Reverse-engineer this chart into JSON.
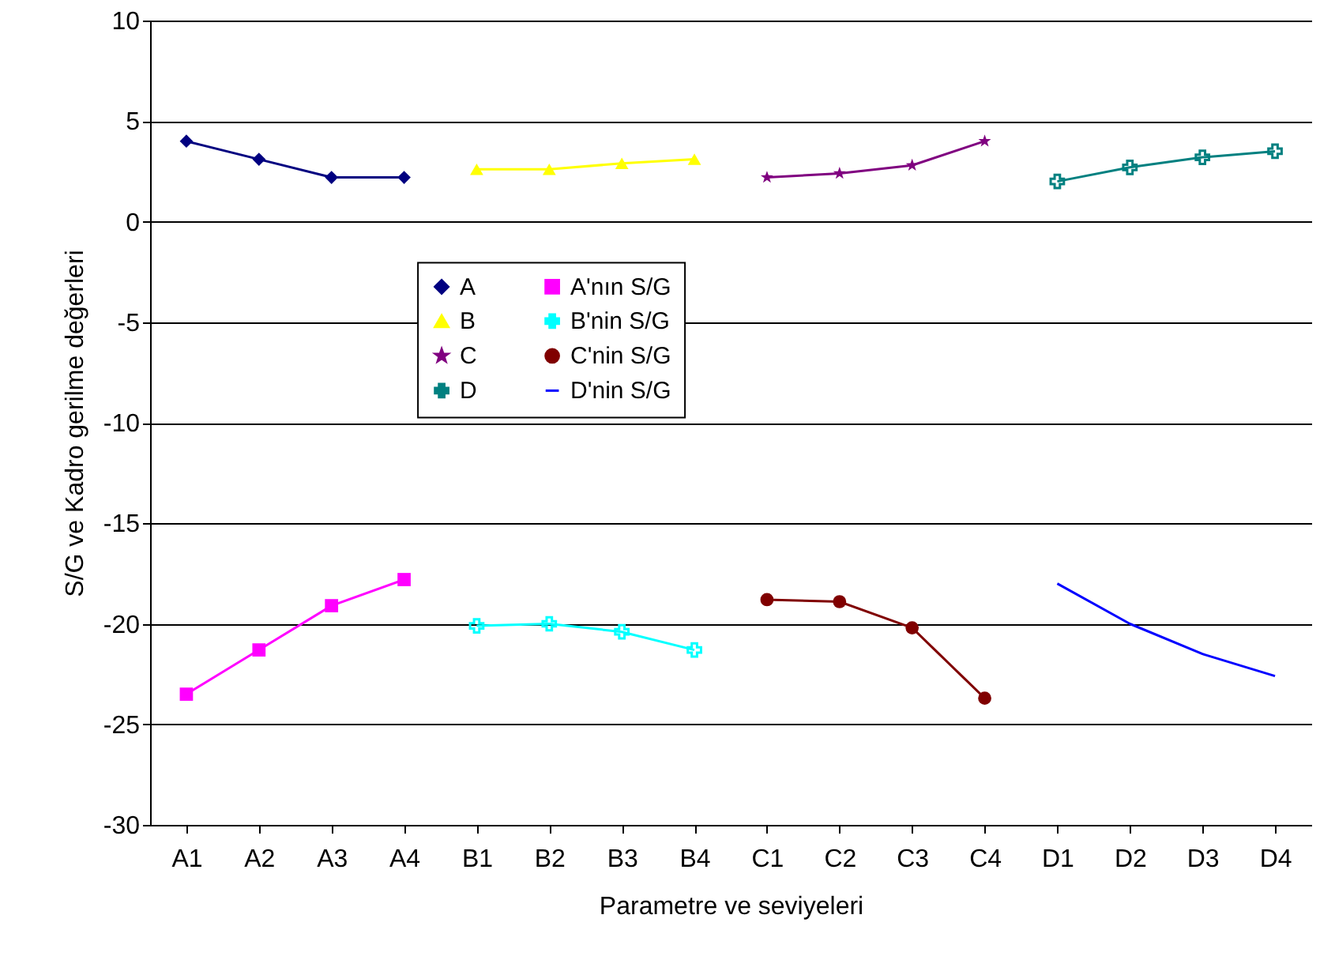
{
  "chart_data": {
    "type": "line",
    "xlabel": "Parametre ve seviyeleri",
    "ylabel": "S/G  ve Kadro gerilme değerleri",
    "categories": [
      "A1",
      "A2",
      "A3",
      "A4",
      "B1",
      "B2",
      "B3",
      "B4",
      "C1",
      "C2",
      "C3",
      "C4",
      "D1",
      "D2",
      "D3",
      "D4"
    ],
    "ylim": [
      -30,
      10
    ],
    "yticks": [
      -30,
      -25,
      -20,
      -15,
      -10,
      -5,
      0,
      5,
      10
    ],
    "grid": "y",
    "legend": "center",
    "series": [
      {
        "name": "A",
        "color": "#000080",
        "marker": "diamond",
        "values": [
          4.0,
          3.1,
          2.2,
          2.2,
          null,
          null,
          null,
          null,
          null,
          null,
          null,
          null,
          null,
          null,
          null,
          null
        ]
      },
      {
        "name": "B",
        "color": "#ffff00",
        "marker": "triangle",
        "values": [
          null,
          null,
          null,
          null,
          2.6,
          2.6,
          2.9,
          3.1,
          null,
          null,
          null,
          null,
          null,
          null,
          null,
          null
        ]
      },
      {
        "name": "C",
        "color": "#800080",
        "marker": "star",
        "values": [
          null,
          null,
          null,
          null,
          null,
          null,
          null,
          null,
          2.2,
          2.4,
          2.8,
          4.0,
          null,
          null,
          null,
          null
        ]
      },
      {
        "name": "D",
        "color": "#008080",
        "marker": "cross",
        "values": [
          null,
          null,
          null,
          null,
          null,
          null,
          null,
          null,
          null,
          null,
          null,
          null,
          2.0,
          2.7,
          3.2,
          3.5
        ]
      },
      {
        "name": "A'nın S/G",
        "color": "#ff00ff",
        "marker": "square",
        "values": [
          -23.5,
          -21.3,
          -19.1,
          -17.8,
          null,
          null,
          null,
          null,
          null,
          null,
          null,
          null,
          null,
          null,
          null,
          null
        ]
      },
      {
        "name": "B'nin S/G",
        "color": "#00ffff",
        "marker": "cross",
        "values": [
          null,
          null,
          null,
          null,
          -20.1,
          -20.0,
          -20.4,
          -21.3,
          null,
          null,
          null,
          null,
          null,
          null,
          null,
          null
        ]
      },
      {
        "name": "C'nin S/G",
        "color": "#800000",
        "marker": "circle",
        "values": [
          null,
          null,
          null,
          null,
          null,
          null,
          null,
          null,
          -18.8,
          -18.9,
          -20.2,
          -23.7,
          null,
          null,
          null,
          null
        ]
      },
      {
        "name": "D'nin S/G",
        "color": "#0000ff",
        "marker": "none",
        "values": [
          null,
          null,
          null,
          null,
          null,
          null,
          null,
          null,
          null,
          null,
          null,
          null,
          -18.0,
          -20.0,
          -21.5,
          -22.6
        ]
      }
    ]
  }
}
